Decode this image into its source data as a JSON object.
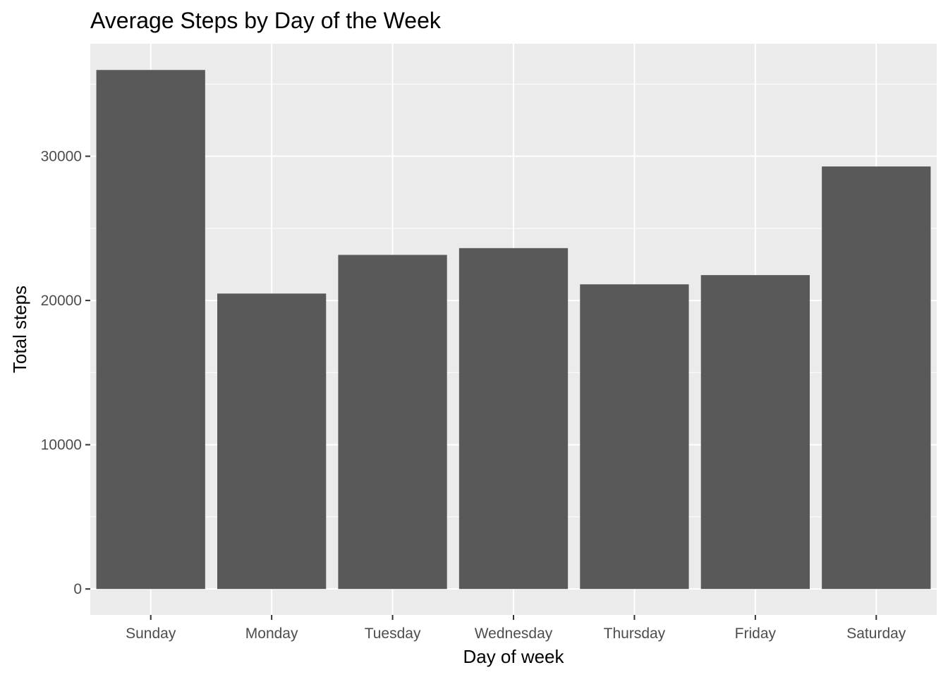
{
  "chart_data": {
    "type": "bar",
    "title": "Average Steps by Day of the Week",
    "xlabel": "Day of week",
    "ylabel": "Total steps",
    "categories": [
      "Sunday",
      "Monday",
      "Tuesday",
      "Wednesday",
      "Thursday",
      "Friday",
      "Saturday"
    ],
    "values": [
      35980,
      20480,
      23160,
      23630,
      21120,
      21760,
      29290
    ],
    "ylim": [
      -1800,
      37800
    ],
    "yticks": [
      0,
      10000,
      20000,
      30000
    ],
    "ytick_labels": [
      "0",
      "10000",
      "20000",
      "30000"
    ],
    "grid": true,
    "legend": "none",
    "colors": {
      "bar": "#595959",
      "panel": "#ebebeb",
      "grid": "#ffffff",
      "tick_label": "#4d4d4d",
      "tick_mark": "#333333"
    }
  }
}
